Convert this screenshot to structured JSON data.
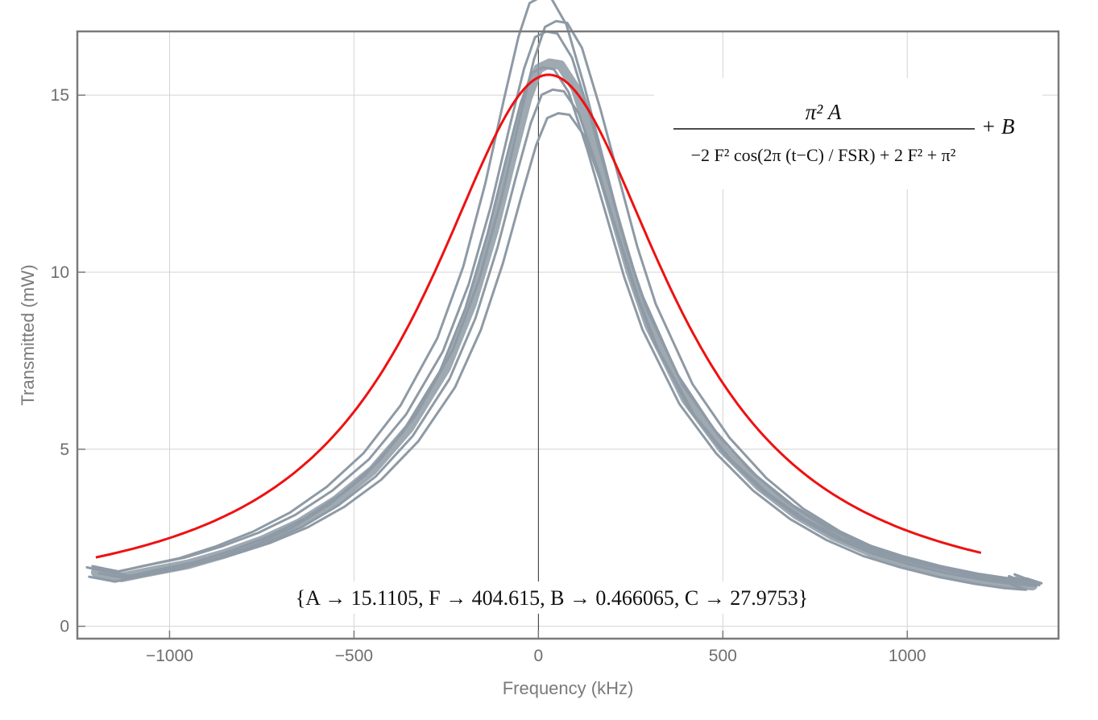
{
  "chart_data": {
    "type": "line",
    "title": "",
    "xlabel": "Frequency (kHz)",
    "ylabel": "Transmitted (mW)",
    "xlim": [
      -1250,
      1410
    ],
    "ylim": [
      -0.35,
      16.8
    ],
    "xticks": [
      -1000,
      -500,
      0,
      500,
      1000
    ],
    "yticks": [
      0,
      5,
      10,
      15
    ],
    "xtick_labels": [
      "−1000",
      "−500",
      "0",
      "500",
      "1000"
    ],
    "ytick_labels": [
      "0",
      "5",
      "10",
      "15"
    ],
    "grid": true,
    "colors": {
      "data": "#8e9aa5",
      "fit": "#ee1111",
      "grid": "#d4d4d4",
      "frame": "#7a7a7a"
    },
    "series": [
      {
        "role": "measured",
        "points": [
          [
            -1200,
            1.52
          ],
          [
            -1130,
            1.38
          ],
          [
            -1050,
            1.55
          ],
          [
            -950,
            1.75
          ],
          [
            -850,
            2.05
          ],
          [
            -750,
            2.42
          ],
          [
            -650,
            2.9
          ],
          [
            -550,
            3.55
          ],
          [
            -450,
            4.4
          ],
          [
            -350,
            5.6
          ],
          [
            -250,
            7.3
          ],
          [
            -180,
            9.1
          ],
          [
            -120,
            11.2
          ],
          [
            -70,
            13.3
          ],
          [
            -30,
            14.9
          ],
          [
            0,
            15.75
          ],
          [
            30,
            15.9
          ],
          [
            60,
            15.85
          ],
          [
            100,
            15.2
          ],
          [
            150,
            13.6
          ],
          [
            200,
            11.8
          ],
          [
            250,
            10.0
          ],
          [
            300,
            8.5
          ],
          [
            400,
            6.4
          ],
          [
            500,
            5.0
          ],
          [
            600,
            3.95
          ],
          [
            700,
            3.15
          ],
          [
            800,
            2.55
          ],
          [
            900,
            2.1
          ],
          [
            1000,
            1.78
          ],
          [
            1100,
            1.52
          ],
          [
            1200,
            1.32
          ],
          [
            1280,
            1.2
          ],
          [
            1340,
            1.15
          ],
          [
            1300,
            1.3
          ]
        ]
      },
      {
        "role": "fit",
        "params": {
          "A": 15.1105,
          "F": 404.615,
          "B": 0.466065,
          "C": 27.9753
        },
        "x_range": [
          -1200,
          1200
        ]
      }
    ],
    "annotations": {
      "formula_numerator": "π² A",
      "formula_denominator": "−2 F² cos(2π (t−C) / FSR) + 2 F² + π²",
      "formula_suffix": "+ B",
      "fit_parameters": "{A → 15.1105, F → 404.615, B → 0.466065, C → 27.9753}"
    }
  }
}
